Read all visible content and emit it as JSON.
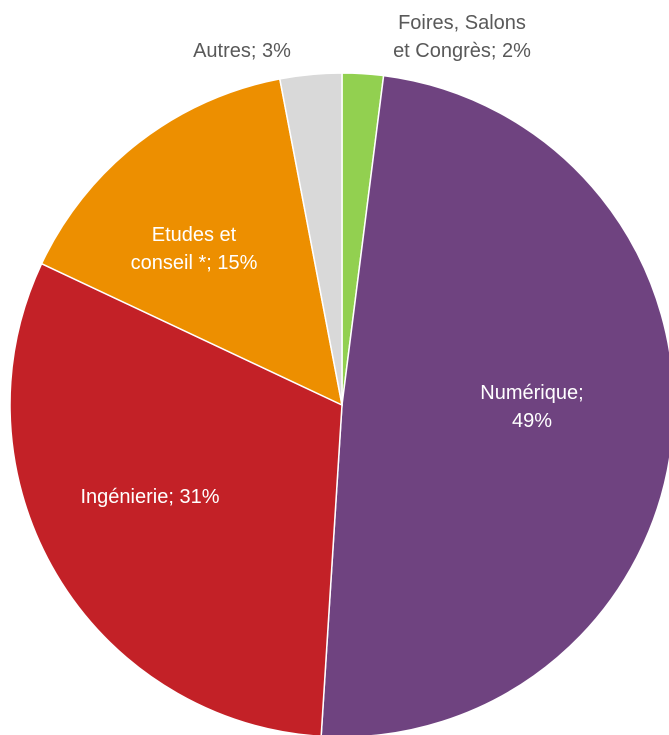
{
  "chart_data": {
    "type": "pie",
    "series": [
      {
        "name": "",
        "slices": [
          {
            "label_lines": [
              "Foires, Salons",
              "et Congrès; 2%"
            ],
            "category": "Foires, Salons et Congrès",
            "value": 2,
            "color": "#92d050",
            "label_color": "#595959"
          },
          {
            "label_lines": [
              "Numérique;",
              "49%"
            ],
            "category": "Numérique",
            "value": 49,
            "color": "#6f4380",
            "label_color": "#ffffff"
          },
          {
            "label_lines": [
              "Ingénierie; 31%"
            ],
            "category": "Ingénierie",
            "value": 31,
            "color": "#c32127",
            "label_color": "#ffffff"
          },
          {
            "label_lines": [
              "Etudes et",
              "conseil *; 15%"
            ],
            "category": "Etudes et conseil *",
            "value": 15,
            "color": "#ed8f00",
            "label_color": "#ffffff"
          },
          {
            "label_lines": [
              "Autres; 3%"
            ],
            "category": "Autres",
            "value": 3,
            "color": "#d9d9d9",
            "label_color": "#595959"
          }
        ]
      }
    ],
    "title": "",
    "legend": "none",
    "start_angle_deg": 0,
    "direction": "clockwise"
  }
}
